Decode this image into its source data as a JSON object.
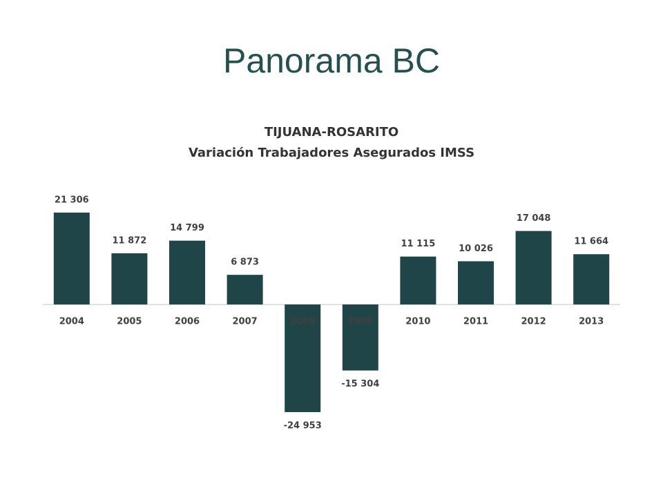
{
  "header": {
    "title": "Panorama BC"
  },
  "chart_data": {
    "type": "bar",
    "title": "TIJUANA-ROSARITO",
    "subtitle": "Variación Trabajadores Asegurados IMSS",
    "categories": [
      "2004",
      "2005",
      "2006",
      "2007",
      "2008",
      "2009",
      "2010",
      "2011",
      "2012",
      "2013"
    ],
    "values": [
      21306,
      11872,
      14799,
      6873,
      -24953,
      -15304,
      11115,
      10026,
      17048,
      11664
    ],
    "value_labels": [
      "21 306",
      "11 872",
      "14 799",
      "6 873",
      "-24 953",
      "-15 304",
      "11 115",
      "10 026",
      "17 048",
      "11 664"
    ],
    "color": "#1f4548"
  }
}
